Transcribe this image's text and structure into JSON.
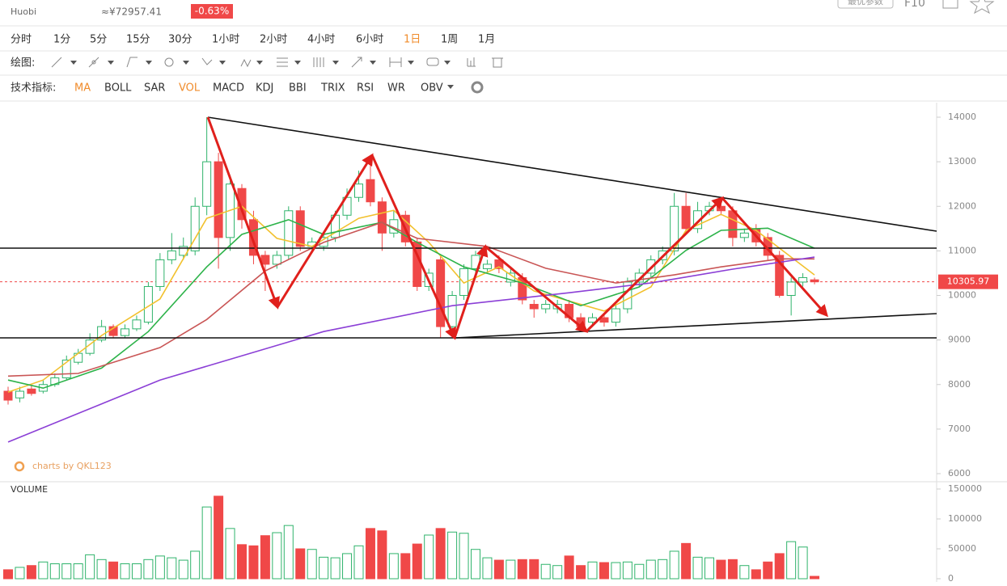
{
  "header": {
    "exchange": "Huobi",
    "cny_price": "≈¥72957.41",
    "change": "-0.63%",
    "button": "最优参数",
    "f10": "F10"
  },
  "periods": [
    {
      "label": "分时",
      "active": false
    },
    {
      "label": "1分",
      "active": false
    },
    {
      "label": "5分",
      "active": false
    },
    {
      "label": "15分",
      "active": false
    },
    {
      "label": "30分",
      "active": false
    },
    {
      "label": "1小时",
      "active": false
    },
    {
      "label": "2小时",
      "active": false
    },
    {
      "label": "4小时",
      "active": false
    },
    {
      "label": "6小时",
      "active": false
    },
    {
      "label": "1日",
      "active": true
    },
    {
      "label": "1周",
      "active": false
    },
    {
      "label": "1月",
      "active": false
    }
  ],
  "draw_label": "绘图:",
  "indicator_label": "技术指标:",
  "indicators": [
    {
      "label": "MA",
      "active": true
    },
    {
      "label": "BOLL",
      "active": false
    },
    {
      "label": "SAR",
      "active": false
    },
    {
      "label": "VOL",
      "active": true
    },
    {
      "label": "MACD",
      "active": false
    },
    {
      "label": "KDJ",
      "active": false
    },
    {
      "label": "BBI",
      "active": false
    },
    {
      "label": "TRIX",
      "active": false
    },
    {
      "label": "RSI",
      "active": false
    },
    {
      "label": "WR",
      "active": false
    },
    {
      "label": "OBV",
      "active": false
    }
  ],
  "watermark": "charts by QKL123",
  "chart_data": [
    {
      "type": "candlestick",
      "open": [
        7850,
        7700,
        7900,
        7850,
        8000,
        8150,
        8500,
        8700,
        9000,
        9300,
        9100,
        9250,
        9400,
        10200,
        10800,
        10900,
        11000,
        12000,
        13000,
        11300,
        12400,
        11700,
        10900,
        10700,
        10900,
        11900,
        11100,
        11100,
        11300,
        11800,
        12200,
        12600,
        12100,
        11400,
        11800,
        11200,
        10200,
        10800,
        9300,
        10000,
        10600,
        10600,
        10800,
        10300,
        10400,
        9800,
        9700,
        9700,
        9800,
        9500,
        9400,
        9500,
        9400,
        9700,
        10300,
        10500,
        10800,
        11000,
        12000,
        11500,
        11900,
        12000,
        11900,
        11300,
        11500,
        11300,
        10900,
        10000,
        10300,
        10350
      ],
      "high": [
        7950,
        7950,
        8000,
        8100,
        8250,
        8650,
        8800,
        9150,
        9450,
        9350,
        9350,
        9550,
        10300,
        10950,
        11400,
        11300,
        12200,
        14000,
        13200,
        12700,
        12500,
        11900,
        11000,
        11000,
        12000,
        12000,
        11300,
        11400,
        11900,
        12400,
        12800,
        13000,
        12200,
        11900,
        11900,
        11300,
        10600,
        10900,
        10100,
        10700,
        11000,
        10800,
        10900,
        10600,
        10500,
        9900,
        9900,
        9900,
        9900,
        9600,
        9600,
        9600,
        9800,
        10400,
        10600,
        10900,
        11100,
        12300,
        12300,
        12100,
        12100,
        12100,
        12000,
        11500,
        11600,
        11400,
        11000,
        10400,
        10500,
        10400
      ],
      "low": [
        7550,
        7600,
        7750,
        7800,
        7950,
        8100,
        8450,
        8650,
        8950,
        9050,
        9050,
        9200,
        9350,
        10100,
        10700,
        10800,
        10900,
        11800,
        10600,
        11000,
        11500,
        10700,
        10100,
        10600,
        10800,
        11000,
        11000,
        11000,
        11200,
        11700,
        12100,
        12000,
        11000,
        11300,
        11100,
        10100,
        10100,
        9050,
        9200,
        9900,
        10500,
        10500,
        10500,
        10200,
        9800,
        9500,
        9600,
        9600,
        9400,
        9200,
        9300,
        9300,
        9300,
        9600,
        10200,
        10400,
        10700,
        10900,
        11400,
        11400,
        11800,
        11800,
        11100,
        11200,
        11100,
        10800,
        9950,
        9550,
        10200,
        10250
      ],
      "close": [
        7650,
        7850,
        7800,
        8000,
        8150,
        8550,
        8700,
        9000,
        9300,
        9100,
        9250,
        9450,
        10200,
        10800,
        11000,
        11100,
        12000,
        13000,
        11300,
        12500,
        11700,
        10900,
        10700,
        10900,
        11900,
        11100,
        11200,
        11300,
        11800,
        12200,
        12500,
        12100,
        11400,
        11700,
        11200,
        10200,
        10500,
        9300,
        10000,
        10600,
        10900,
        10700,
        10600,
        10500,
        9900,
        9700,
        9800,
        9800,
        9500,
        9300,
        9500,
        9400,
        9700,
        10300,
        10500,
        10800,
        11000,
        12000,
        11500,
        11900,
        12000,
        11900,
        11300,
        11400,
        11200,
        10900,
        10000,
        10300,
        10400,
        10306
      ],
      "up_color": "#2fb36b",
      "down_color": "#f04848",
      "ylim": [
        6000,
        14000
      ],
      "yticks": [
        14000,
        13000,
        12000,
        11000,
        10000,
        9000,
        8000,
        7000,
        6000
      ],
      "last_price": 10305.97,
      "ma_lines": [
        {
          "color": "#f2c12e",
          "x": [
            0,
            3,
            8,
            13,
            17,
            20,
            23,
            26,
            30,
            33,
            36,
            39,
            42,
            45,
            51,
            55,
            58,
            61,
            64,
            69
          ],
          "values": [
            7830,
            8100,
            9100,
            9920,
            11730,
            12000,
            11280,
            11100,
            11730,
            11910,
            11190,
            10280,
            10640,
            10100,
            9650,
            10190,
            11460,
            11820,
            11460,
            10460
          ]
        },
        {
          "color": "#2db34a",
          "x": [
            0,
            3,
            8,
            12,
            17,
            20,
            24,
            27,
            32,
            35,
            39,
            44,
            49,
            54,
            58,
            61,
            65,
            69
          ],
          "values": [
            8100,
            7920,
            8370,
            9190,
            10640,
            11370,
            11700,
            11370,
            11640,
            11190,
            10640,
            10280,
            9770,
            10190,
            11010,
            11460,
            11510,
            11060
          ]
        },
        {
          "color": "#c95555",
          "x": [
            0,
            6,
            13,
            17,
            22,
            27,
            32,
            35,
            41,
            46,
            52,
            57,
            61,
            66,
            69
          ],
          "values": [
            8190,
            8250,
            8830,
            9460,
            10550,
            11190,
            11640,
            11280,
            11100,
            10610,
            10280,
            10460,
            10640,
            10820,
            10820
          ]
        },
        {
          "color": "#8b3fd6",
          "x": [
            0,
            13,
            27,
            38,
            48,
            55,
            62,
            69
          ],
          "values": [
            6710,
            8100,
            9190,
            9770,
            10060,
            10280,
            10590,
            10860
          ]
        }
      ]
    },
    {
      "type": "bar",
      "title": "VOLUME",
      "values": [
        15000,
        19000,
        22000,
        28000,
        25000,
        25000,
        25000,
        40000,
        32000,
        28000,
        25000,
        25000,
        32000,
        38000,
        35000,
        31000,
        46000,
        120000,
        138000,
        84000,
        57000,
        55000,
        72000,
        77000,
        89000,
        50000,
        49000,
        36000,
        35000,
        42000,
        55000,
        84000,
        80000,
        42000,
        42000,
        58000,
        73000,
        84000,
        78000,
        76000,
        49000,
        35000,
        31000,
        31000,
        32000,
        32000,
        24000,
        22000,
        38000,
        22000,
        28000,
        27000,
        27000,
        28000,
        24000,
        31000,
        32000,
        46000,
        59000,
        36000,
        35000,
        31000,
        32000,
        22000,
        15000,
        28000,
        42000,
        62000,
        53000,
        4000
      ],
      "ylim": [
        0,
        150000
      ],
      "yticks": [
        150000,
        100000,
        50000,
        0
      ]
    }
  ]
}
